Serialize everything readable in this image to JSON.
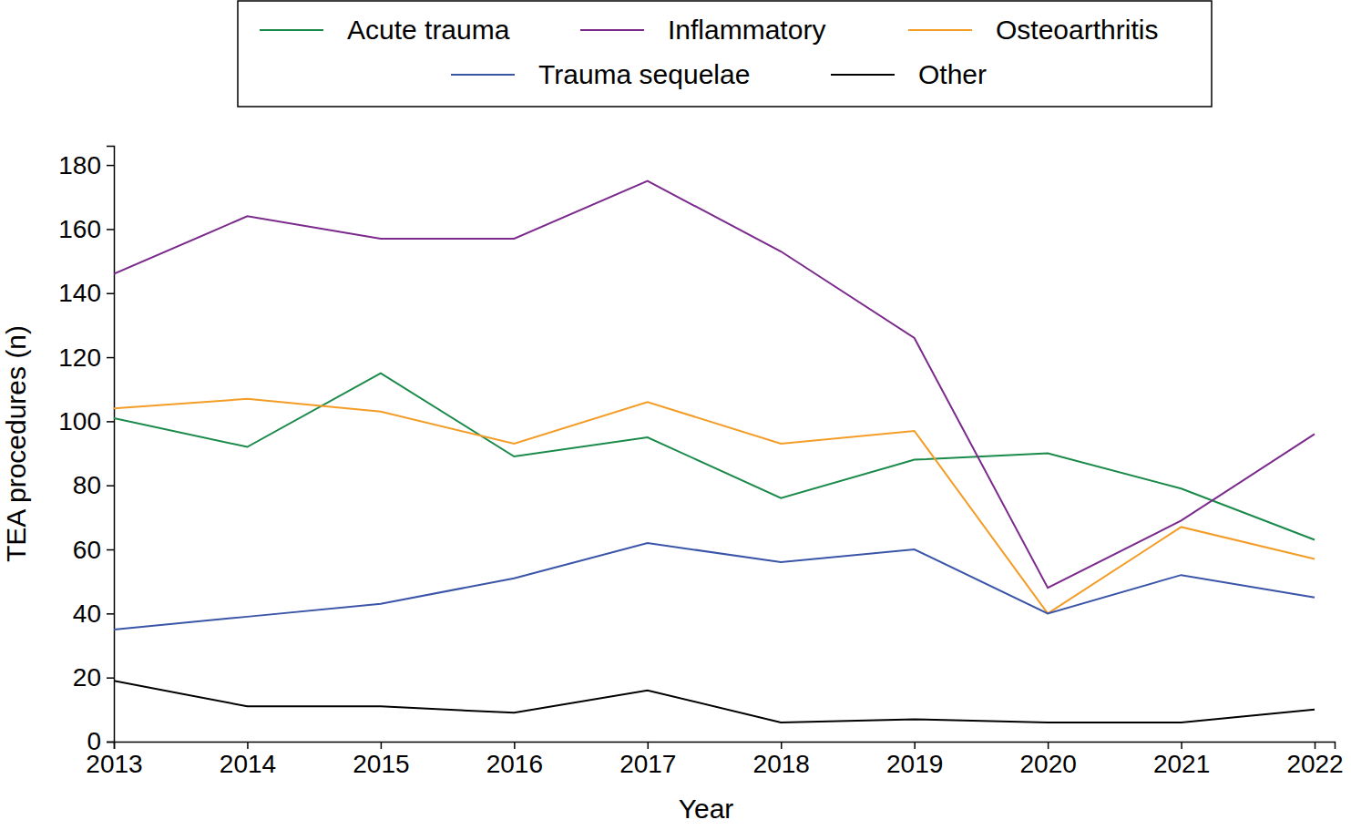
{
  "chart_data": {
    "type": "line",
    "x_label": "Year",
    "y_label": "TEA procedures (n)",
    "x": [
      2013,
      2014,
      2015,
      2016,
      2017,
      2018,
      2019,
      2020,
      2021,
      2022
    ],
    "xlim": [
      2013,
      2022.15
    ],
    "xticks": [
      2013,
      2014,
      2015,
      2016,
      2017,
      2018,
      2019,
      2020,
      2021,
      2022
    ],
    "ylim": [
      0,
      186
    ],
    "yticks": [
      0,
      20,
      40,
      60,
      80,
      100,
      120,
      140,
      160,
      180
    ],
    "legend": "top",
    "grid": false,
    "series": [
      {
        "name": "Acute trauma",
        "color": "#1a8a4a",
        "values": [
          101,
          92,
          115,
          89,
          95,
          76,
          88,
          90,
          79,
          63
        ]
      },
      {
        "name": "Inflammatory",
        "color": "#7b2a8c",
        "values": [
          146,
          164,
          157,
          157,
          175,
          153,
          126,
          48,
          69,
          96
        ]
      },
      {
        "name": "Osteoarthritis",
        "color": "#f39c26",
        "values": [
          104,
          107,
          103,
          93,
          106,
          93,
          97,
          40,
          67,
          57
        ]
      },
      {
        "name": "Trauma sequelae",
        "color": "#3a55a8",
        "values": [
          35,
          39,
          43,
          51,
          62,
          56,
          60,
          40,
          52,
          45
        ]
      },
      {
        "name": "Other",
        "color": "#000000",
        "values": [
          19,
          11,
          11,
          9,
          16,
          6,
          7,
          6,
          6,
          10
        ]
      }
    ]
  }
}
